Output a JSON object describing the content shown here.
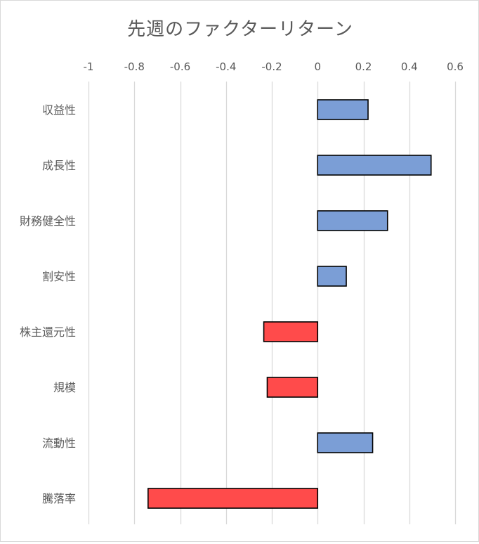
{
  "chart_data": {
    "type": "bar",
    "orientation": "horizontal",
    "title": "先週のファクターリターン",
    "xlabel": "",
    "ylabel": "",
    "xlim": [
      -1,
      0.6
    ],
    "x_ticks": [
      -1,
      -0.8,
      -0.6,
      -0.4,
      -0.2,
      0,
      0.2,
      0.4,
      0.6
    ],
    "x_tick_labels": [
      "-1",
      "-0.8",
      "-0.6",
      "-0.4",
      "-0.2",
      "0",
      "0.2",
      "0.4",
      "0.6"
    ],
    "x_axis_position": "top",
    "grid": true,
    "legend": "none",
    "categories": [
      "収益性",
      "成長性",
      "財務健全性",
      "割安性",
      "株主還元性",
      "規模",
      "流動性",
      "騰落率"
    ],
    "values": [
      0.22,
      0.495,
      0.305,
      0.125,
      -0.235,
      -0.22,
      0.24,
      -0.74
    ],
    "colors": {
      "positive": "#7b9ed6",
      "negative": "#ff4b4b",
      "outline": "#000000",
      "grid": "#d9d9d9",
      "text": "#595959"
    }
  }
}
